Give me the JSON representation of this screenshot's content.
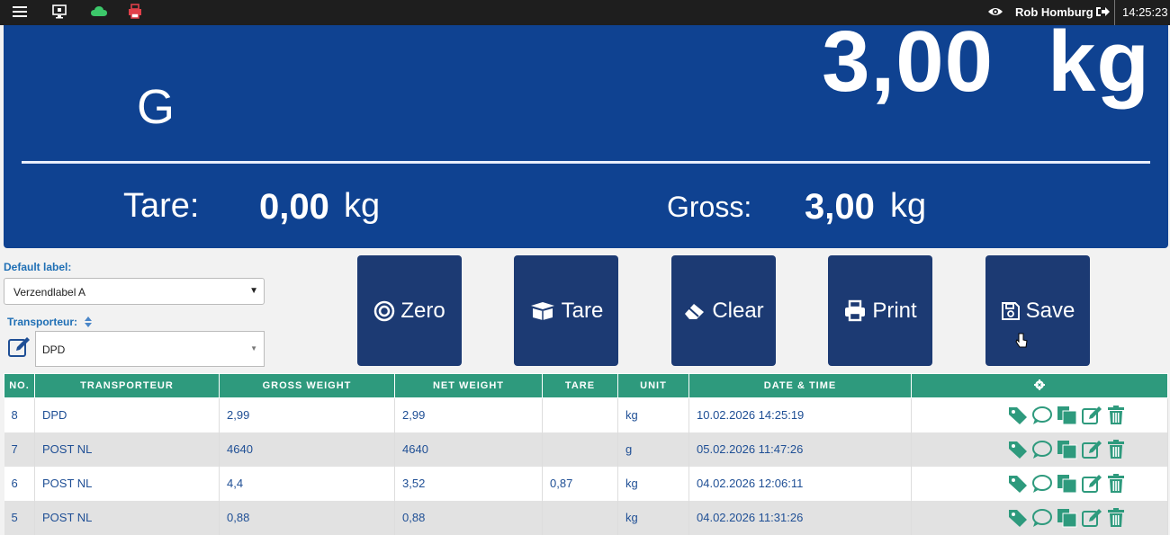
{
  "topbar": {
    "user_name": "Rob Homburg",
    "time": "14:25:23",
    "icons": [
      "menu-icon",
      "monitor-icon",
      "cloud-icon",
      "printer-icon",
      "eye-icon",
      "logout-icon"
    ],
    "colors": {
      "cloud": "#3cc86a",
      "printer": "#e0404a"
    }
  },
  "display": {
    "mode": "G",
    "weight_value": "3,00",
    "weight_unit": "kg",
    "tare_label": "Tare:",
    "tare_value": "0,00",
    "tare_unit": "kg",
    "gross_label": "Gross:",
    "gross_value": "3,00",
    "gross_unit": "kg",
    "background": "#0f4291"
  },
  "form": {
    "default_label_label": "Default label:",
    "default_label_value": "Verzendlabel A",
    "transporteur_label": "Transporteur:",
    "transporteur_value": "DPD"
  },
  "buttons": {
    "zero": "Zero",
    "tare": "Tare",
    "clear": "Clear",
    "print": "Print",
    "save": "Save"
  },
  "table": {
    "headers": {
      "no": "NO.",
      "transporteur": "TRANSPORTEUR",
      "gross": "GROSS WEIGHT",
      "net": "NET WEIGHT",
      "tare": "TARE",
      "unit": "UNIT",
      "datetime": "DATE & TIME"
    },
    "rows": [
      {
        "no": "8",
        "transporteur": "DPD",
        "gross": "2,99",
        "net": "2,99",
        "tare": "",
        "unit": "kg",
        "datetime": "10.02.2026 14:25:19"
      },
      {
        "no": "7",
        "transporteur": "POST NL",
        "gross": "4640",
        "net": "4640",
        "tare": "",
        "unit": "g",
        "datetime": "05.02.2026 11:47:26"
      },
      {
        "no": "6",
        "transporteur": "POST NL",
        "gross": "4,4",
        "net": "3,52",
        "tare": "0,87",
        "unit": "kg",
        "datetime": "04.02.2026 12:06:11"
      },
      {
        "no": "5",
        "transporteur": "POST NL",
        "gross": "0,88",
        "net": "0,88",
        "tare": "",
        "unit": "kg",
        "datetime": "04.02.2026 11:31:26"
      }
    ],
    "action_icons": [
      "tag-icon",
      "comment-icon",
      "copy-icon",
      "edit-icon",
      "trash-icon"
    ],
    "accent": "#2e9a7d"
  }
}
